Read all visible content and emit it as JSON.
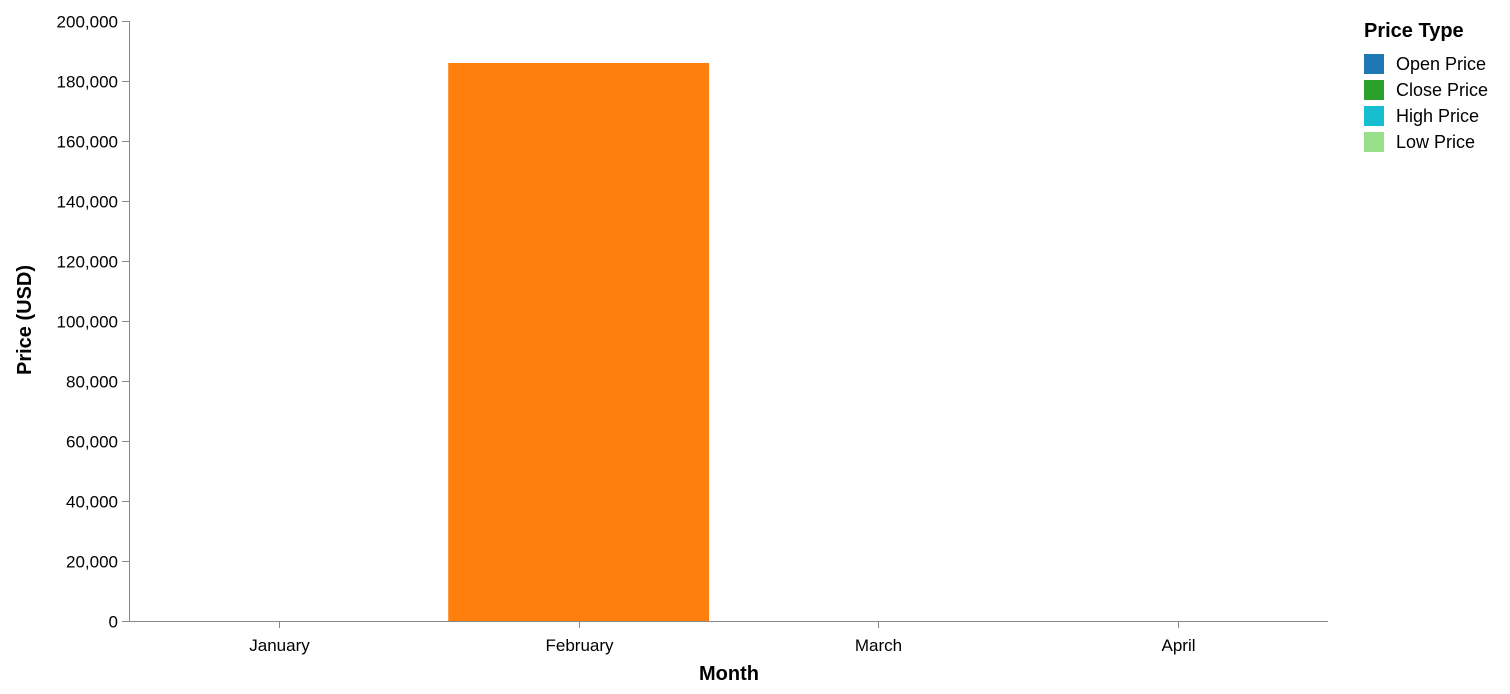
{
  "chart_data": {
    "type": "bar",
    "xlabel": "Month",
    "ylabel": "Price (USD)",
    "categories": [
      "January",
      "February",
      "March",
      "April"
    ],
    "ylim": [
      0,
      200000
    ],
    "yticks": [
      0,
      20000,
      40000,
      60000,
      80000,
      100000,
      120000,
      140000,
      160000,
      180000,
      200000
    ],
    "ytick_labels": [
      "0",
      "20,000",
      "40,000",
      "60,000",
      "80,000",
      "100,000",
      "120,000",
      "140,000",
      "160,000",
      "180,000",
      "200,000"
    ],
    "values": [
      0,
      186000,
      0,
      0
    ],
    "bar_color": "#ff7f0e",
    "grid": false,
    "legend": {
      "title": "Price Type",
      "position": "top-right",
      "entries": [
        {
          "label": "Open Price",
          "color": "#1f77b4"
        },
        {
          "label": "Close Price",
          "color": "#2ca02c"
        },
        {
          "label": "High Price",
          "color": "#17becf"
        },
        {
          "label": "Low Price",
          "color": "#98df8a"
        }
      ]
    }
  }
}
